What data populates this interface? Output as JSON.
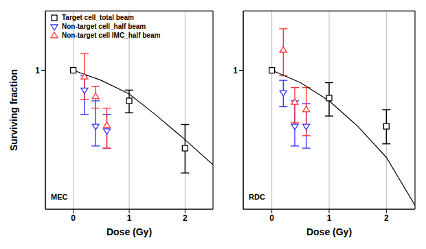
{
  "chart_data": [
    {
      "type": "scatter",
      "title": "MEC",
      "x_label": "Dose (Gy)",
      "y_label": "Surviving fraction",
      "log": "y",
      "grid": true,
      "legend": "upper left",
      "xlim": [
        -0.5,
        2.5
      ],
      "xticks": [
        0,
        1,
        2
      ],
      "ylim": [
        0.27,
        1.75
      ],
      "yticks": [
        1
      ],
      "series": [
        {
          "name": "Target cell_total beam",
          "color": "#000000",
          "marker": "square",
          "x": [
            0,
            1,
            2
          ],
          "values": [
            1.0,
            0.75,
            0.48
          ],
          "lower": [
            null,
            0.67,
            0.38
          ],
          "upper": [
            null,
            0.83,
            0.6
          ]
        },
        {
          "name": "Non-target cell_half beam",
          "color": "#3333ff",
          "marker": "triangle_down",
          "x": [
            0.2,
            0.4,
            0.6
          ],
          "values": [
            0.83,
            0.59,
            0.565
          ],
          "lower": [
            0.66,
            0.49,
            0.48
          ],
          "upper": [
            0.95,
            0.75,
            0.66
          ]
        },
        {
          "name": "Non-target cell IMC_half beam",
          "color": "#ff3333",
          "marker": "triangle",
          "x": [
            0.2,
            0.4,
            0.6
          ],
          "values": [
            0.94,
            0.78,
            0.595
          ],
          "lower": [
            0.76,
            0.7,
            0.48
          ],
          "upper": [
            1.17,
            0.86,
            0.7
          ]
        },
        {
          "type": "line",
          "color": "#000000",
          "x": [
            0,
            0.5,
            1,
            1.5,
            2,
            2.5
          ],
          "values": [
            1.0,
            0.91,
            0.8,
            0.65,
            0.52,
            0.41
          ]
        }
      ]
    },
    {
      "type": "scatter",
      "title": "RDC",
      "x_label": "Dose (Gy)",
      "log": "y",
      "grid": true,
      "xlim": [
        -0.5,
        2.5
      ],
      "xticks": [
        0,
        1,
        2
      ],
      "ylim": [
        0.27,
        1.75
      ],
      "yticks": [
        1
      ],
      "series": [
        {
          "color": "#000000",
          "marker": "square",
          "x": [
            0,
            1,
            2
          ],
          "values": [
            1.0,
            0.77,
            0.59
          ],
          "lower": [
            null,
            0.65,
            0.5
          ],
          "upper": [
            null,
            0.89,
            0.69
          ]
        },
        {
          "color": "#3333ff",
          "marker": "triangle_down",
          "x": [
            0.2,
            0.4,
            0.6
          ],
          "values": [
            0.81,
            0.59,
            0.59
          ],
          "lower": [
            0.71,
            0.49,
            0.48
          ],
          "upper": [
            0.91,
            0.75,
            0.73
          ]
        },
        {
          "color": "#ff3333",
          "marker": "triangle",
          "x": [
            0.2,
            0.4,
            0.6
          ],
          "values": [
            1.21,
            0.74,
            0.69
          ],
          "lower": [
            0.95,
            0.61,
            0.54
          ],
          "upper": [
            1.48,
            0.85,
            0.85
          ]
        },
        {
          "type": "line",
          "color": "#000000",
          "x": [
            0,
            0.5,
            1,
            1.5,
            2,
            2.5
          ],
          "values": [
            1.0,
            0.89,
            0.75,
            0.59,
            0.44,
            0.28
          ]
        }
      ]
    }
  ]
}
